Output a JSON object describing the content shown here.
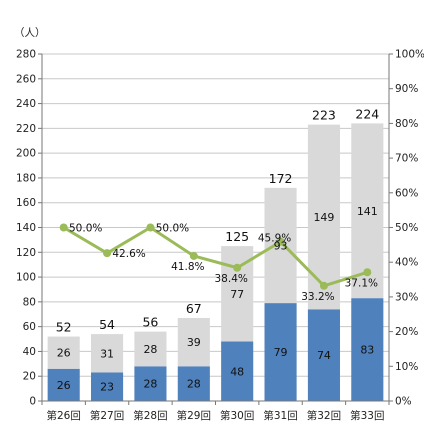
{
  "chart_data": {
    "type": "bar",
    "stacked": true,
    "ylabel": "（人）",
    "ylim": [
      0,
      280
    ],
    "y_ticks": [
      0,
      20,
      40,
      60,
      80,
      100,
      120,
      140,
      160,
      180,
      200,
      220,
      240,
      260,
      280
    ],
    "y2lim": [
      0,
      100
    ],
    "y2_ticks": [
      "0%",
      "10%",
      "20%",
      "30%",
      "40%",
      "50%",
      "60%",
      "70%",
      "80%",
      "90%",
      "100%"
    ],
    "grid": true,
    "categories": [
      "第26回",
      "第27回",
      "第28回",
      "第29回",
      "第30回",
      "第31回",
      "第32回",
      "第33回"
    ],
    "series": [
      {
        "type": "bar",
        "axis": "left",
        "color": "#4f81bd",
        "values": [
          26,
          23,
          28,
          28,
          48,
          79,
          74,
          83
        ]
      },
      {
        "type": "bar",
        "axis": "left",
        "color": "#d9d9d9",
        "values": [
          26,
          31,
          28,
          39,
          77,
          93,
          149,
          141
        ]
      },
      {
        "type": "line",
        "axis": "right",
        "color": "#9bbb59",
        "values": [
          50.0,
          42.6,
          50.0,
          41.8,
          38.4,
          45.9,
          33.2,
          37.1
        ],
        "labels": [
          "50.0%",
          "42.6%",
          "50.0%",
          "41.8%",
          "38.4%",
          "45.9%",
          "33.2%",
          "37.1%"
        ]
      }
    ],
    "totals": [
      52,
      54,
      56,
      67,
      125,
      172,
      223,
      224
    ]
  }
}
